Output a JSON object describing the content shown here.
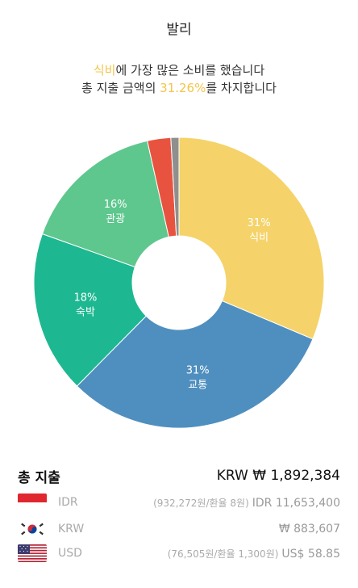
{
  "header": {
    "title": "발리",
    "line1": {
      "highlight": "식비",
      "rest": "에 가장 많은 소비를 했습니다"
    },
    "line2": {
      "prefix": "총 지출 금액의 ",
      "percent": "31.26%",
      "suffix": "를 차지합니다"
    }
  },
  "chart_data": {
    "type": "pie",
    "donut": true,
    "slices": [
      {
        "label": "식비",
        "percent_label": "31%",
        "value": 31.26,
        "color": "#f5d36a"
      },
      {
        "label": "교통",
        "percent_label": "31%",
        "value": 31.0,
        "color": "#4f8fbf"
      },
      {
        "label": "숙박",
        "percent_label": "18%",
        "value": 18.0,
        "color": "#1db891"
      },
      {
        "label": "관광",
        "percent_label": "16%",
        "value": 16.0,
        "color": "#5ec78e"
      },
      {
        "label": "",
        "percent_label": "",
        "value": 2.6,
        "color": "#e8533f"
      },
      {
        "label": "",
        "percent_label": "",
        "value": 0.9,
        "color": "#8f8f8f"
      }
    ]
  },
  "summary": {
    "total_label": "총 지출",
    "total_value": "KRW ₩ 1,892,384",
    "currencies": [
      {
        "code": "IDR",
        "note": "(932,272원/환율 8원)",
        "amount": "IDR 11,653,400",
        "flag": "indonesia-flag"
      },
      {
        "code": "KRW",
        "note": "",
        "amount": "₩ 883,607",
        "flag": "korea-flag"
      },
      {
        "code": "USD",
        "note": "(76,505원/환율 1,300원)",
        "amount": "US$ 58.85",
        "flag": "usa-flag"
      }
    ]
  }
}
